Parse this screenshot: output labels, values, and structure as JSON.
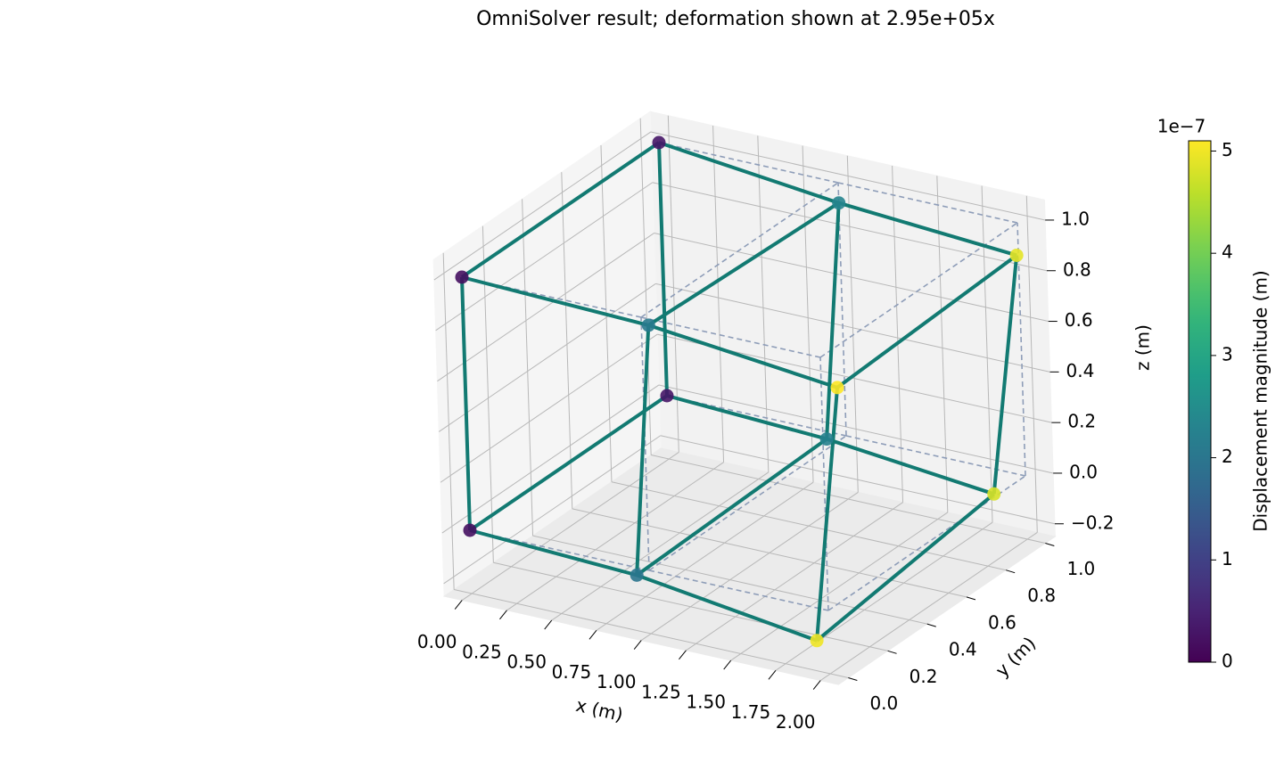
{
  "chart_data": {
    "type": "mesh3d",
    "title": "OmniSolver result; deformation shown at 2.95e+05x",
    "x_label": "x (m)",
    "y_label": "y (m)",
    "z_label": "z (m)",
    "x": [
      0,
      0.93,
      1.93,
      0,
      0.89,
      1.82,
      0,
      1.04,
      2.09,
      0,
      1.0,
      1.99
    ],
    "y": [
      0,
      0,
      0,
      1,
      1,
      1,
      0,
      0,
      0,
      1,
      1,
      1
    ],
    "z": [
      0,
      -0.03,
      -0.13,
      0,
      -0.03,
      -0.1,
      1,
      0.975,
      0.895,
      1,
      0.92,
      0.87
    ],
    "magnitude": [
      0.2,
      2.0,
      5.0,
      0.3,
      2.2,
      4.8,
      0.2,
      2.1,
      5.1,
      0.3,
      2.3,
      4.9
    ],
    "undeformed": {
      "x": [
        0,
        1,
        2,
        0,
        1,
        2,
        0,
        1,
        2,
        0,
        1,
        2
      ],
      "y": [
        0,
        0,
        0,
        1,
        1,
        1,
        0,
        0,
        0,
        1,
        1,
        1
      ],
      "z": [
        0,
        0,
        0,
        0,
        0,
        0,
        1,
        1,
        1,
        1,
        1,
        1
      ]
    },
    "edges": [
      [
        0,
        1
      ],
      [
        1,
        2
      ],
      [
        3,
        4
      ],
      [
        4,
        5
      ],
      [
        6,
        7
      ],
      [
        7,
        8
      ],
      [
        9,
        10
      ],
      [
        10,
        11
      ],
      [
        0,
        3
      ],
      [
        1,
        4
      ],
      [
        2,
        5
      ],
      [
        6,
        9
      ],
      [
        7,
        10
      ],
      [
        8,
        11
      ],
      [
        0,
        6
      ],
      [
        1,
        7
      ],
      [
        2,
        8
      ],
      [
        3,
        9
      ],
      [
        4,
        10
      ],
      [
        5,
        11
      ]
    ],
    "edge_color": "#127a72",
    "undeformed_color": "#8e9db8",
    "xlim": [
      -0.1,
      2.1
    ],
    "ylim": [
      -0.05,
      1.05
    ],
    "zlim": [
      -0.25,
      1.08
    ],
    "xticks": [
      {
        "value": 0,
        "label": "0.00"
      },
      {
        "value": 0.25,
        "label": "0.25"
      },
      {
        "value": 0.5,
        "label": "0.50"
      },
      {
        "value": 0.75,
        "label": "0.75"
      },
      {
        "value": 1,
        "label": "1.00"
      },
      {
        "value": 1.25,
        "label": "1.25"
      },
      {
        "value": 1.5,
        "label": "1.50"
      },
      {
        "value": 1.75,
        "label": "1.75"
      },
      {
        "value": 2,
        "label": "2.00"
      }
    ],
    "yticks": [
      {
        "value": 0,
        "label": "0.0"
      },
      {
        "value": 0.2,
        "label": "0.2"
      },
      {
        "value": 0.4,
        "label": "0.4"
      },
      {
        "value": 0.6,
        "label": "0.6"
      },
      {
        "value": 0.8,
        "label": "0.8"
      },
      {
        "value": 1,
        "label": "1.0"
      }
    ],
    "zticks": [
      {
        "value": -0.2,
        "label": "−0.2"
      },
      {
        "value": 0,
        "label": "0.0"
      },
      {
        "value": 0.2,
        "label": "0.2"
      },
      {
        "value": 0.4,
        "label": "0.4"
      },
      {
        "value": 0.6,
        "label": "0.6"
      },
      {
        "value": 0.8,
        "label": "0.8"
      },
      {
        "value": 1,
        "label": "1.0"
      }
    ],
    "grid": true,
    "colormap": "viridis",
    "colorbar_label": "Displacement magnitude (m)",
    "colorbar_offset_label": "1e−7",
    "clim": [
      0,
      5.1
    ],
    "colorbar_ticks": [
      0,
      1,
      2,
      3,
      4,
      5
    ]
  }
}
